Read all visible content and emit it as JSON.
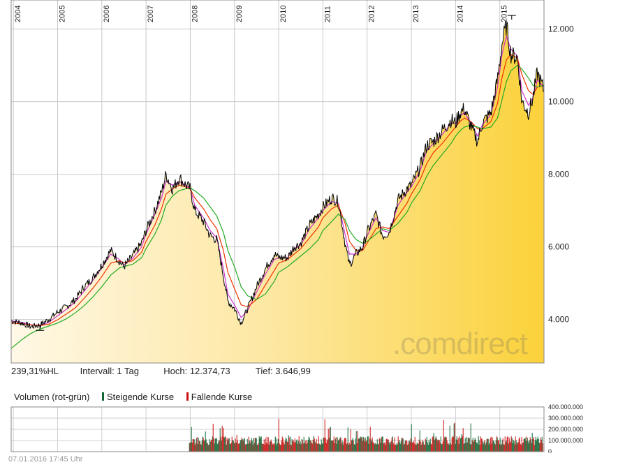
{
  "chart_data": {
    "type": "line",
    "x": [
      2003.95,
      2004.2,
      2004.4,
      2004.6,
      2004.8,
      2005.0,
      2005.2,
      2005.4,
      2005.6,
      2005.8,
      2006.0,
      2006.2,
      2006.4,
      2006.5,
      2006.7,
      2006.9,
      2007.0,
      2007.2,
      2007.35,
      2007.45,
      2007.6,
      2007.75,
      2007.9,
      2008.0,
      2008.1,
      2008.3,
      2008.45,
      2008.6,
      2008.75,
      2008.85,
      2009.0,
      2009.15,
      2009.3,
      2009.5,
      2009.7,
      2009.9,
      2010.0,
      2010.2,
      2010.35,
      2010.5,
      2010.7,
      2010.9,
      2011.0,
      2011.2,
      2011.35,
      2011.5,
      2011.6,
      2011.75,
      2011.9,
      2012.0,
      2012.2,
      2012.35,
      2012.5,
      2012.7,
      2012.9,
      2013.0,
      2013.2,
      2013.35,
      2013.5,
      2013.7,
      2013.9,
      2014.0,
      2014.1,
      2014.2,
      2014.35,
      2014.5,
      2014.6,
      2014.8,
      2014.95,
      2015.05,
      2015.15,
      2015.25,
      2015.4,
      2015.5,
      2015.65,
      2015.75,
      2015.85,
      2016.0
    ],
    "values": [
      3960,
      3900,
      3800,
      3850,
      4000,
      4200,
      4350,
      4550,
      4900,
      5150,
      5500,
      5900,
      5600,
      5450,
      5750,
      6100,
      6450,
      7000,
      7500,
      8000,
      7600,
      7900,
      7700,
      7600,
      7000,
      6700,
      6300,
      6200,
      5200,
      4500,
      4300,
      3900,
      4300,
      4900,
      5400,
      5800,
      5700,
      5700,
      6000,
      6100,
      6600,
      6900,
      7100,
      7350,
      7250,
      6100,
      5500,
      5800,
      6000,
      6400,
      6900,
      6300,
      6400,
      7300,
      7600,
      7700,
      8200,
      8800,
      8900,
      9200,
      9500,
      9400,
      9700,
      9800,
      9300,
      8900,
      9400,
      9700,
      10600,
      11600,
      12100,
      11300,
      11200,
      10000,
      9700,
      10100,
      10800,
      10300
    ],
    "series": [
      {
        "values": [
          3960,
          3900,
          3800,
          3850,
          4000,
          4200,
          4350,
          4550,
          4900,
          5150,
          5500,
          5900,
          5600,
          5450,
          5750,
          6100,
          6450,
          7000,
          7500,
          8000,
          7600,
          7900,
          7700,
          7600,
          7000,
          6700,
          6300,
          6200,
          5200,
          4500,
          4300,
          3900,
          4300,
          4900,
          5400,
          5800,
          5700,
          5700,
          6000,
          6100,
          6600,
          6900,
          7100,
          7350,
          7250,
          6100,
          5500,
          5800,
          6000,
          6400,
          6900,
          6300,
          6400,
          7300,
          7600,
          7700,
          8200,
          8800,
          8900,
          9200,
          9500,
          9400,
          9700,
          9800,
          9300,
          8900,
          9400,
          9700,
          10600,
          11600,
          12100,
          11300,
          11200,
          10000,
          9700,
          10100,
          10800,
          10300
        ],
        "color": "#000000"
      },
      {
        "values": [
          3960,
          3920,
          3850,
          3840,
          3920,
          4100,
          4280,
          4480,
          4780,
          5080,
          5420,
          5800,
          5650,
          5500,
          5680,
          6000,
          6350,
          6900,
          7350,
          7800,
          7700,
          7800,
          7700,
          7600,
          7150,
          6800,
          6450,
          6250,
          5400,
          4700,
          4400,
          4050,
          4250,
          4750,
          5250,
          5650,
          5700,
          5700,
          5950,
          6050,
          6500,
          6800,
          7000,
          7250,
          7200,
          6350,
          5800,
          5800,
          5950,
          6300,
          6800,
          6450,
          6400,
          7150,
          7500,
          7650,
          8100,
          8650,
          8850,
          9100,
          9400,
          9400,
          9600,
          9700,
          9400,
          9050,
          9350,
          9650,
          10400,
          11300,
          11800,
          11450,
          11250,
          10300,
          9900,
          10100,
          10600,
          10400
        ],
        "color": "#cc33cc"
      },
      {
        "values": [
          3900,
          3880,
          3850,
          3830,
          3870,
          3990,
          4150,
          4320,
          4580,
          4860,
          5180,
          5550,
          5620,
          5560,
          5620,
          5850,
          6150,
          6600,
          7050,
          7450,
          7600,
          7700,
          7650,
          7600,
          7350,
          7050,
          6750,
          6500,
          5900,
          5300,
          4850,
          4400,
          4350,
          4550,
          4950,
          5350,
          5550,
          5650,
          5800,
          5950,
          6250,
          6550,
          6800,
          7050,
          7150,
          6650,
          6150,
          5900,
          5900,
          6100,
          6500,
          6550,
          6500,
          6850,
          7200,
          7450,
          7850,
          8300,
          8600,
          8850,
          9150,
          9300,
          9450,
          9550,
          9450,
          9250,
          9250,
          9450,
          9950,
          10650,
          11150,
          11300,
          11200,
          10750,
          10300,
          10200,
          10400,
          10450
        ],
        "color": "#ee3300"
      },
      {
        "values": [
          3200,
          3450,
          3620,
          3730,
          3820,
          3900,
          4020,
          4180,
          4380,
          4620,
          4900,
          5220,
          5420,
          5460,
          5520,
          5700,
          5950,
          6350,
          6750,
          7150,
          7400,
          7550,
          7600,
          7620,
          7550,
          7350,
          7100,
          6850,
          6400,
          5900,
          5450,
          4900,
          4650,
          4550,
          4700,
          5050,
          5300,
          5450,
          5600,
          5750,
          5950,
          6200,
          6450,
          6700,
          6900,
          6750,
          6450,
          6200,
          6100,
          6150,
          6350,
          6500,
          6450,
          6650,
          6950,
          7200,
          7550,
          7950,
          8250,
          8550,
          8850,
          9050,
          9200,
          9300,
          9350,
          9300,
          9250,
          9300,
          9550,
          10050,
          10550,
          10850,
          11000,
          10900,
          10650,
          10450,
          10400,
          10450
        ],
        "color": "#22aa22"
      }
    ],
    "ylim": [
      2800,
      12800
    ],
    "xlim": [
      2003.95,
      2016.0
    ],
    "x_tick_labels": [
      "2004",
      "2005",
      "2006",
      "2007",
      "2008",
      "2009",
      "2010",
      "2011",
      "2012",
      "2013",
      "2014",
      "2015"
    ],
    "y_tick_labels": [
      "4.000",
      "6.000",
      "8.000",
      "10.000",
      "12.000"
    ],
    "y_ticks": [
      4000,
      6000,
      8000,
      10000,
      12000
    ],
    "grid": true,
    "high_value": 12374.73,
    "low_value": 3646.99
  },
  "stats": {
    "perf": "239,31%HL",
    "interval": "Intervall: 1 Tag",
    "high": "Hoch:  12.374,73",
    "low": "Tief:  3.646,99"
  },
  "volume": {
    "title": "Volumen (rot-grün)",
    "rising_label": "Steigende Kurse",
    "falling_label": "Fallende Kurse",
    "rising_color": "#116633",
    "falling_color": "#cc1111",
    "y_tick_labels": [
      "400.000.000",
      "300.000.000",
      "200.000.000",
      "100.000.000",
      "0"
    ],
    "ylim": [
      0,
      400000000
    ],
    "data_start": 2007.98
  },
  "watermark": ".comdirect",
  "footer": "07.01.2016 17:45 Uhr"
}
